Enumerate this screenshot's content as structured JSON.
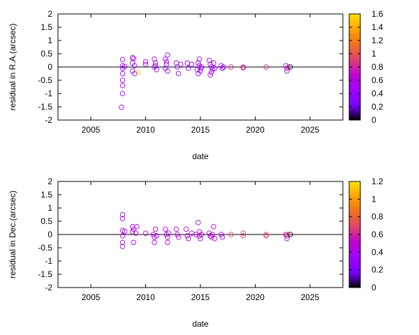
{
  "chart_data": [
    {
      "type": "scatter",
      "xlabel": "date",
      "ylabel": "residual in R.A.(arcsec)",
      "xlim": [
        2002,
        2028
      ],
      "ylim": [
        -2,
        2
      ],
      "x_ticks": [
        "2005",
        "2010",
        "2015",
        "2020",
        "2025"
      ],
      "y_ticks": [
        "-2",
        "-1.5",
        "-1",
        "-0.5",
        "0",
        "0.5",
        "1",
        "1.5",
        "2"
      ],
      "zero_line": true,
      "colorbar": {
        "range": [
          0,
          1.6
        ],
        "ticks": [
          "0",
          "0.2",
          "0.4",
          "0.6",
          "0.8",
          "1",
          "1.2",
          "1.4",
          "1.6"
        ],
        "colors": [
          "#000000",
          "#7a00ff",
          "#a000ff",
          "#c000d0",
          "#e04070",
          "#f07020",
          "#ffa000",
          "#ffe000"
        ]
      },
      "points": [
        {
          "x": 2007.9,
          "y": 0.28,
          "c": 0.45
        },
        {
          "x": 2007.9,
          "y": 0.05,
          "c": 0.45
        },
        {
          "x": 2007.9,
          "y": -0.05,
          "c": 0.45
        },
        {
          "x": 2007.9,
          "y": -0.25,
          "c": 0.45
        },
        {
          "x": 2007.9,
          "y": -0.5,
          "c": 0.45
        },
        {
          "x": 2007.9,
          "y": -0.7,
          "c": 0.45
        },
        {
          "x": 2007.9,
          "y": -1.0,
          "c": 0.45
        },
        {
          "x": 2007.8,
          "y": -1.52,
          "c": 0.45
        },
        {
          "x": 2008.1,
          "y": 0.02,
          "c": 0.5
        },
        {
          "x": 2008.8,
          "y": 0.35,
          "c": 0.45
        },
        {
          "x": 2008.9,
          "y": 0.32,
          "c": 0.45
        },
        {
          "x": 2008.8,
          "y": 0.15,
          "c": 0.45
        },
        {
          "x": 2008.8,
          "y": -0.15,
          "c": 0.45
        },
        {
          "x": 2009.0,
          "y": -0.25,
          "c": 0.45
        },
        {
          "x": 2009.3,
          "y": -0.2,
          "c": 1.5
        },
        {
          "x": 2009.0,
          "y": 0.05,
          "c": 0.45
        },
        {
          "x": 2010.0,
          "y": 0.1,
          "c": 0.45
        },
        {
          "x": 2010.0,
          "y": 0.2,
          "c": 0.45
        },
        {
          "x": 2010.8,
          "y": 0.3,
          "c": 0.45
        },
        {
          "x": 2010.9,
          "y": 0.15,
          "c": 0.45
        },
        {
          "x": 2010.8,
          "y": 0.0,
          "c": 0.45
        },
        {
          "x": 2011.0,
          "y": -0.1,
          "c": 0.45
        },
        {
          "x": 2010.9,
          "y": 0.05,
          "c": 0.45
        },
        {
          "x": 2011.8,
          "y": 0.3,
          "c": 0.45
        },
        {
          "x": 2012.0,
          "y": 0.45,
          "c": 0.45
        },
        {
          "x": 2011.9,
          "y": 0.1,
          "c": 0.45
        },
        {
          "x": 2011.8,
          "y": -0.05,
          "c": 0.45
        },
        {
          "x": 2012.0,
          "y": -0.15,
          "c": 0.45
        },
        {
          "x": 2011.9,
          "y": 0.2,
          "c": 0.45
        },
        {
          "x": 2012.8,
          "y": 0.15,
          "c": 0.45
        },
        {
          "x": 2012.9,
          "y": 0.0,
          "c": 0.45
        },
        {
          "x": 2013.0,
          "y": -0.25,
          "c": 0.45
        },
        {
          "x": 2013.2,
          "y": 0.1,
          "c": 0.45
        },
        {
          "x": 2013.8,
          "y": 0.15,
          "c": 0.45
        },
        {
          "x": 2013.9,
          "y": -0.05,
          "c": 0.45
        },
        {
          "x": 2014.2,
          "y": 0.1,
          "c": 0.2
        },
        {
          "x": 2014.8,
          "y": 0.15,
          "c": 0.45
        },
        {
          "x": 2014.9,
          "y": 0.3,
          "c": 0.45
        },
        {
          "x": 2014.9,
          "y": 0.05,
          "c": 0.45
        },
        {
          "x": 2015.0,
          "y": -0.05,
          "c": 0.45
        },
        {
          "x": 2015.0,
          "y": -0.15,
          "c": 0.45
        },
        {
          "x": 2014.8,
          "y": -0.25,
          "c": 0.45
        },
        {
          "x": 2015.1,
          "y": 0.0,
          "c": 0.45
        },
        {
          "x": 2014.7,
          "y": -0.1,
          "c": 0.45
        },
        {
          "x": 2015.8,
          "y": 0.25,
          "c": 0.45
        },
        {
          "x": 2015.9,
          "y": 0.1,
          "c": 0.45
        },
        {
          "x": 2016.0,
          "y": 0.0,
          "c": 0.45
        },
        {
          "x": 2016.1,
          "y": -0.1,
          "c": 0.45
        },
        {
          "x": 2016.0,
          "y": -0.2,
          "c": 0.45
        },
        {
          "x": 2015.9,
          "y": -0.3,
          "c": 0.45
        },
        {
          "x": 2016.2,
          "y": 0.15,
          "c": 0.45
        },
        {
          "x": 2016.3,
          "y": -0.05,
          "c": 0.45
        },
        {
          "x": 2016.9,
          "y": 0.05,
          "c": 0.45
        },
        {
          "x": 2017.0,
          "y": -0.05,
          "c": 0.45
        },
        {
          "x": 2017.1,
          "y": 0.0,
          "c": 0.45
        },
        {
          "x": 2017.8,
          "y": 0.0,
          "c": 0.8
        },
        {
          "x": 2018.9,
          "y": 0.0,
          "c": 0.8
        },
        {
          "x": 2018.9,
          "y": -0.03,
          "c": 0.8
        },
        {
          "x": 2021.0,
          "y": 0.0,
          "c": 0.8
        },
        {
          "x": 2022.8,
          "y": 0.05,
          "c": 0.45
        },
        {
          "x": 2022.9,
          "y": -0.05,
          "c": 0.45
        },
        {
          "x": 2022.9,
          "y": -0.15,
          "c": 0.45
        },
        {
          "x": 2023.0,
          "y": 0.0,
          "c": 1.0
        },
        {
          "x": 2023.2,
          "y": 0.0,
          "c": 0.05
        }
      ]
    },
    {
      "type": "scatter",
      "xlabel": "date",
      "ylabel": "residual in Dec.(arcsec)",
      "xlim": [
        2002,
        2028
      ],
      "ylim": [
        -2,
        2
      ],
      "x_ticks": [
        "2005",
        "2010",
        "2015",
        "2020",
        "2025"
      ],
      "y_ticks": [
        "-2",
        "-1.5",
        "-1",
        "-0.5",
        "0",
        "0.5",
        "1",
        "1.5",
        "2"
      ],
      "zero_line": true,
      "colorbar": {
        "range": [
          0,
          1.2
        ],
        "ticks": [
          "0",
          "0.2",
          "0.4",
          "0.6",
          "0.8",
          "1",
          "1.2"
        ],
        "colors": [
          "#000000",
          "#7a00ff",
          "#a000ff",
          "#c000d0",
          "#e04070",
          "#f07020",
          "#ffa000",
          "#ffe000"
        ]
      },
      "points": [
        {
          "x": 2007.9,
          "y": 0.75,
          "c": 0.45
        },
        {
          "x": 2007.9,
          "y": 0.6,
          "c": 0.45
        },
        {
          "x": 2007.9,
          "y": 0.15,
          "c": 0.45
        },
        {
          "x": 2007.9,
          "y": -0.05,
          "c": 0.45
        },
        {
          "x": 2007.9,
          "y": -0.3,
          "c": 0.45
        },
        {
          "x": 2007.9,
          "y": -0.45,
          "c": 0.45
        },
        {
          "x": 2008.1,
          "y": 0.12,
          "c": 0.45
        },
        {
          "x": 2008.8,
          "y": 0.3,
          "c": 0.45
        },
        {
          "x": 2008.9,
          "y": 0.2,
          "c": 0.45
        },
        {
          "x": 2008.8,
          "y": 0.1,
          "c": 0.45
        },
        {
          "x": 2008.9,
          "y": -0.3,
          "c": 0.45
        },
        {
          "x": 2009.2,
          "y": 0.3,
          "c": 0.45
        },
        {
          "x": 2009.1,
          "y": 0.05,
          "c": 0.45
        },
        {
          "x": 2010.0,
          "y": 0.05,
          "c": 0.45
        },
        {
          "x": 2010.7,
          "y": 0.0,
          "c": 0.45
        },
        {
          "x": 2010.8,
          "y": -0.1,
          "c": 0.45
        },
        {
          "x": 2010.9,
          "y": 0.2,
          "c": 0.45
        },
        {
          "x": 2011.0,
          "y": -0.05,
          "c": 0.45
        },
        {
          "x": 2010.8,
          "y": -0.3,
          "c": 0.45
        },
        {
          "x": 2011.8,
          "y": 0.2,
          "c": 0.45
        },
        {
          "x": 2011.9,
          "y": 0.0,
          "c": 0.45
        },
        {
          "x": 2012.0,
          "y": -0.1,
          "c": 0.45
        },
        {
          "x": 2012.1,
          "y": 0.05,
          "c": 0.45
        },
        {
          "x": 2012.0,
          "y": -0.3,
          "c": 0.45
        },
        {
          "x": 2012.8,
          "y": 0.2,
          "c": 0.45
        },
        {
          "x": 2012.9,
          "y": 0.0,
          "c": 0.45
        },
        {
          "x": 2013.0,
          "y": -0.1,
          "c": 0.45
        },
        {
          "x": 2013.7,
          "y": 0.2,
          "c": 0.45
        },
        {
          "x": 2013.8,
          "y": -0.05,
          "c": 0.45
        },
        {
          "x": 2013.9,
          "y": -0.15,
          "c": 0.45
        },
        {
          "x": 2014.2,
          "y": 0.05,
          "c": 0.45
        },
        {
          "x": 2014.6,
          "y": 0.0,
          "c": 0.45
        },
        {
          "x": 2014.8,
          "y": 0.45,
          "c": 0.45
        },
        {
          "x": 2014.9,
          "y": 0.1,
          "c": 0.45
        },
        {
          "x": 2014.9,
          "y": -0.05,
          "c": 0.45
        },
        {
          "x": 2015.0,
          "y": -0.15,
          "c": 0.45
        },
        {
          "x": 2015.1,
          "y": 0.0,
          "c": 0.45
        },
        {
          "x": 2015.8,
          "y": 0.05,
          "c": 0.45
        },
        {
          "x": 2015.9,
          "y": -0.05,
          "c": 0.45
        },
        {
          "x": 2016.0,
          "y": -0.1,
          "c": 0.45
        },
        {
          "x": 2016.1,
          "y": 0.0,
          "c": 0.45
        },
        {
          "x": 2016.2,
          "y": 0.3,
          "c": 0.45
        },
        {
          "x": 2016.3,
          "y": -0.15,
          "c": 0.45
        },
        {
          "x": 2016.9,
          "y": 0.0,
          "c": 0.45
        },
        {
          "x": 2017.0,
          "y": -0.1,
          "c": 0.45
        },
        {
          "x": 2017.8,
          "y": 0.0,
          "c": 0.7
        },
        {
          "x": 2018.9,
          "y": 0.05,
          "c": 0.7
        },
        {
          "x": 2018.9,
          "y": -0.05,
          "c": 0.7
        },
        {
          "x": 2021.0,
          "y": 0.0,
          "c": 0.7
        },
        {
          "x": 2021.0,
          "y": -0.05,
          "c": 0.7
        },
        {
          "x": 2022.8,
          "y": 0.0,
          "c": 0.45
        },
        {
          "x": 2022.9,
          "y": -0.05,
          "c": 0.45
        },
        {
          "x": 2022.9,
          "y": -0.15,
          "c": 0.45
        },
        {
          "x": 2023.0,
          "y": 0.0,
          "c": 0.9
        },
        {
          "x": 2023.2,
          "y": 0.0,
          "c": 0.05
        }
      ]
    }
  ]
}
